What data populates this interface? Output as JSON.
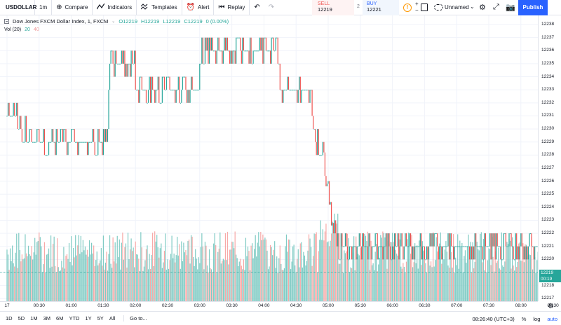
{
  "toolbar": {
    "symbol": "USDOLLAR",
    "interval": "1m",
    "compare_label": "Compare",
    "indicators_label": "Indicators",
    "templates_label": "Templates",
    "alert_label": "Alert",
    "replay_label": "Replay",
    "sell_label": "SELL",
    "sell_price": "12219",
    "spread": "2",
    "buy_label": "BUY",
    "buy_price": "12221",
    "layout_name": "Unnamed",
    "publish_label": "Publish"
  },
  "legend": {
    "title": "Dow Jones FXCM Dollar Index, 1, FXCM",
    "open": "O12219",
    "high": "H12219",
    "low": "L12219",
    "close": "C12219",
    "change": "0 (0.00%)",
    "vol_label": "Vol (20)",
    "vol_a": "20",
    "vol_b": "40"
  },
  "price_axis": {
    "ticks": [
      "12238",
      "12237",
      "12236",
      "12235",
      "12234",
      "12233",
      "12232",
      "12231",
      "12230",
      "12229",
      "12228",
      "12227",
      "12226",
      "12225",
      "12224",
      "12223",
      "12222",
      "12221",
      "12220",
      "12219",
      "12218",
      "12217"
    ],
    "last_price": "12219",
    "countdown": "00:19"
  },
  "time_axis": {
    "ticks": [
      "17",
      "00:30",
      "01:00",
      "01:30",
      "02:00",
      "02:30",
      "03:00",
      "03:30",
      "04:00",
      "04:30",
      "05:00",
      "05:30",
      "06:00",
      "06:30",
      "07:00",
      "07:30",
      "08:00",
      "08:30"
    ]
  },
  "bottom": {
    "ranges": [
      "1D",
      "5D",
      "1M",
      "3M",
      "6M",
      "YTD",
      "1Y",
      "5Y",
      "All"
    ],
    "goto_label": "Go to...",
    "time": "08:26:40 (UTC+3)",
    "pct": "%",
    "log": "log",
    "auto": "auto"
  },
  "colors": {
    "up": "#26a69a",
    "down": "#ef5350",
    "vol_up": "#80cbc4",
    "vol_down": "#f7a9a7",
    "grid": "#f0f3fa",
    "accent": "#2962ff"
  },
  "chart_data": {
    "type": "candlestick",
    "title": "Dow Jones FXCM Dollar Index, 1, FXCM",
    "ylim": [
      12216.8,
      12238.7
    ],
    "x_ticks": [
      "17",
      "00:30",
      "01:00",
      "01:30",
      "02:00",
      "02:30",
      "03:00",
      "03:30",
      "04:00",
      "04:30",
      "05:00",
      "05:30",
      "06:00",
      "06:30",
      "07:00",
      "07:30",
      "08:00",
      "08:30"
    ],
    "series_close_segments": [
      {
        "from": "00:00",
        "to": "00:30",
        "level": 12229
      },
      {
        "from": "00:30",
        "to": "01:30",
        "level": 12229
      },
      {
        "from": "01:35",
        "to": "02:00",
        "level": 12235
      },
      {
        "from": "02:00",
        "to": "03:00",
        "level": 12233
      },
      {
        "from": "03:00",
        "to": "03:30",
        "level": 12236
      },
      {
        "from": "03:30",
        "to": "04:15",
        "level": 12236
      },
      {
        "from": "04:15",
        "to": "04:45",
        "level": 12233
      },
      {
        "from": "04:45",
        "to": "05:00",
        "level": 12230
      },
      {
        "from": "05:00",
        "to": "05:10",
        "level": 12222
      },
      {
        "from": "05:10",
        "to": "08:26",
        "level": 12221
      }
    ],
    "last_price": 12219,
    "volume_label": "Vol (20)"
  }
}
